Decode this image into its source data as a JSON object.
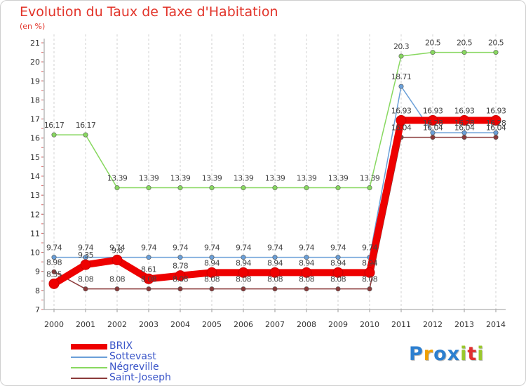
{
  "chart_data": {
    "type": "line",
    "title": "Evolution du Taux de Taxe d'Habitation",
    "ylabel": "(en %)",
    "xlabel": "",
    "ylim": [
      7,
      21
    ],
    "yticks": [
      7,
      8,
      9,
      10,
      11,
      12,
      13,
      14,
      15,
      16,
      17,
      18,
      19,
      20,
      21
    ],
    "x": [
      2000,
      2001,
      2002,
      2003,
      2004,
      2005,
      2006,
      2007,
      2008,
      2009,
      2010,
      2011,
      2012,
      2013,
      2014
    ],
    "grid": "vertical-dashed",
    "legend": "bottom-left",
    "series": [
      {
        "name": "BRIX",
        "color": "#ee0000",
        "values": [
          8.35,
          9.35,
          9.6,
          8.61,
          8.78,
          8.94,
          8.94,
          8.94,
          8.94,
          8.94,
          8.94,
          16.93,
          16.93,
          16.93,
          16.93
        ],
        "labels": [
          "8.35",
          "9.35",
          "9.6",
          "8.61",
          "8.78",
          "8.94",
          "8.94",
          "8.94",
          "8.94",
          "8.94",
          "8.94",
          "16.93",
          "16.93",
          "16.93",
          "16.93"
        ]
      },
      {
        "name": "Sottevast",
        "color": "#6a9fd8",
        "values": [
          9.74,
          9.74,
          9.74,
          9.74,
          9.74,
          9.74,
          9.74,
          9.74,
          9.74,
          9.74,
          9.74,
          18.71,
          16.28,
          16.28,
          16.28
        ],
        "labels": [
          "9.74",
          "9.74",
          "9.74",
          "9.74",
          "9.74",
          "9.74",
          "9.74",
          "9.74",
          "9.74",
          "9.74",
          "9.74",
          "18.71",
          "16.28",
          "16.28",
          "16.28"
        ]
      },
      {
        "name": "Négreville",
        "color": "#88d860",
        "values": [
          16.17,
          16.17,
          13.39,
          13.39,
          13.39,
          13.39,
          13.39,
          13.39,
          13.39,
          13.39,
          13.39,
          20.3,
          20.5,
          20.5,
          20.5
        ],
        "labels": [
          "16.17",
          "16.17",
          "13.39",
          "13.39",
          "13.39",
          "13.39",
          "13.39",
          "13.39",
          "13.39",
          "13.39",
          "13.39",
          "20.3",
          "20.5",
          "20.5",
          "20.5"
        ]
      },
      {
        "name": "Saint-Joseph",
        "color": "#8b3a3a",
        "values": [
          8.98,
          8.08,
          8.08,
          8.08,
          8.08,
          8.08,
          8.08,
          8.08,
          8.08,
          8.08,
          8.08,
          16.04,
          16.04,
          16.04,
          16.04
        ],
        "labels": [
          "8.98",
          "8.08",
          "8.08",
          "8.08",
          "8.08",
          "8.08",
          "8.08",
          "8.08",
          "8.08",
          "8.08",
          "8.08",
          "16.04",
          "16.04",
          "16.04",
          "16.04"
        ]
      }
    ]
  },
  "logo": {
    "letters": [
      "P",
      "r",
      "o",
      "x",
      "i",
      "t",
      "i"
    ],
    "colors": [
      "#2c7fd0",
      "#f0a000",
      "#2c7fd0",
      "#2c7fd0",
      "#9ac82c",
      "#e03030",
      "#9ac82c"
    ]
  }
}
